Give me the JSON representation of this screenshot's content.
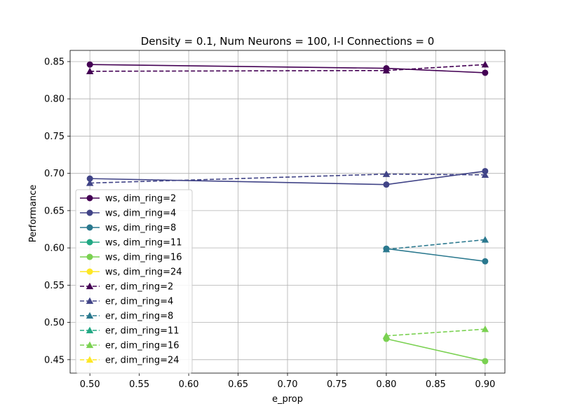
{
  "chart_data": {
    "type": "line",
    "title": "Density = 0.1, Num Neurons = 100, I-I Connections = 0",
    "xlabel": "e_prop",
    "ylabel": "Performance",
    "xlim": [
      0.48,
      0.92
    ],
    "ylim": [
      0.432,
      0.865
    ],
    "xticks": [
      "0.50",
      "0.55",
      "0.60",
      "0.65",
      "0.70",
      "0.75",
      "0.80",
      "0.85",
      "0.90"
    ],
    "yticks": [
      "0.45",
      "0.50",
      "0.55",
      "0.60",
      "0.65",
      "0.70",
      "0.75",
      "0.80",
      "0.85"
    ],
    "grid": true,
    "legend_position": "lower-left",
    "series": [
      {
        "name": "ws, dim_ring=2",
        "color": "#440154",
        "linestyle": "solid",
        "marker": "circle",
        "x": [
          0.5,
          0.8,
          0.9
        ],
        "y": [
          0.846,
          0.841,
          0.835
        ]
      },
      {
        "name": "ws, dim_ring=4",
        "color": "#414487",
        "linestyle": "solid",
        "marker": "circle",
        "x": [
          0.5,
          0.8,
          0.9
        ],
        "y": [
          0.693,
          0.685,
          0.703
        ]
      },
      {
        "name": "ws, dim_ring=8",
        "color": "#2a788e",
        "linestyle": "solid",
        "marker": "circle",
        "x": [
          0.8,
          0.9
        ],
        "y": [
          0.599,
          0.582
        ]
      },
      {
        "name": "ws, dim_ring=11",
        "color": "#22a884",
        "linestyle": "solid",
        "marker": "circle",
        "x": [],
        "y": []
      },
      {
        "name": "ws, dim_ring=16",
        "color": "#7ad151",
        "linestyle": "solid",
        "marker": "circle",
        "x": [
          0.8,
          0.9
        ],
        "y": [
          0.478,
          0.448
        ]
      },
      {
        "name": "ws, dim_ring=24",
        "color": "#fde725",
        "linestyle": "solid",
        "marker": "circle",
        "x": [],
        "y": []
      },
      {
        "name": "er, dim_ring=2",
        "color": "#440154",
        "linestyle": "dashed",
        "marker": "triangle",
        "x": [
          0.5,
          0.8,
          0.9
        ],
        "y": [
          0.837,
          0.838,
          0.846
        ]
      },
      {
        "name": "er, dim_ring=4",
        "color": "#414487",
        "linestyle": "dashed",
        "marker": "triangle",
        "x": [
          0.5,
          0.8,
          0.9
        ],
        "y": [
          0.687,
          0.699,
          0.698
        ]
      },
      {
        "name": "er, dim_ring=8",
        "color": "#2a788e",
        "linestyle": "dashed",
        "marker": "triangle",
        "x": [
          0.8,
          0.9
        ],
        "y": [
          0.598,
          0.611
        ]
      },
      {
        "name": "er, dim_ring=11",
        "color": "#22a884",
        "linestyle": "dashed",
        "marker": "triangle",
        "x": [],
        "y": []
      },
      {
        "name": "er, dim_ring=16",
        "color": "#7ad151",
        "linestyle": "dashed",
        "marker": "triangle",
        "x": [
          0.8,
          0.9
        ],
        "y": [
          0.482,
          0.491
        ]
      },
      {
        "name": "er, dim_ring=24",
        "color": "#fde725",
        "linestyle": "dashed",
        "marker": "triangle",
        "x": [],
        "y": []
      }
    ]
  }
}
